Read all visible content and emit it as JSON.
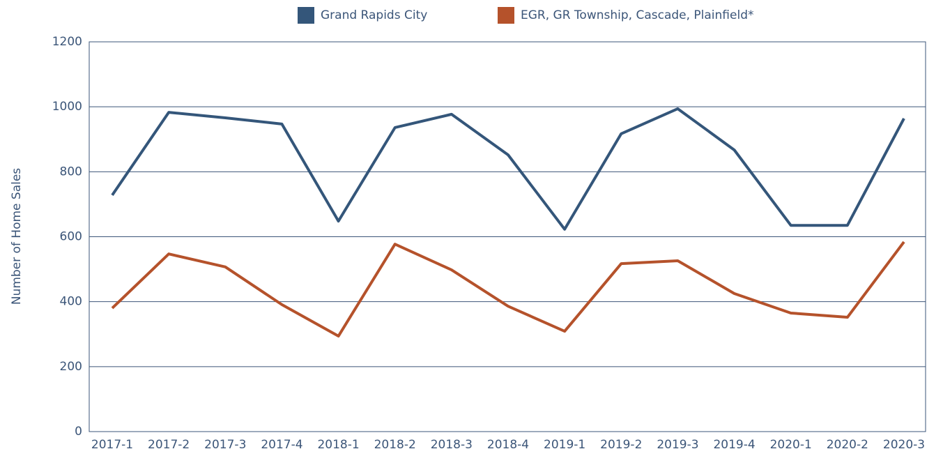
{
  "chart_data": {
    "type": "line",
    "categories": [
      "2017-1",
      "2017-2",
      "2017-3",
      "2017-4",
      "2018-1",
      "2018-2",
      "2018-3",
      "2018-4",
      "2019-1",
      "2019-2",
      "2019-3",
      "2019-4",
      "2020-1",
      "2020-2",
      "2020-3"
    ],
    "series": [
      {
        "name": "Grand Rapids City",
        "color": "#34567a",
        "values": [
          728,
          983,
          966,
          947,
          648,
          936,
          977,
          852,
          623,
          917,
          994,
          867,
          635,
          635,
          964
        ]
      },
      {
        "name": "EGR, GR Township, Cascade, Plainfield*",
        "color": "#b5522b",
        "values": [
          380,
          547,
          507,
          391,
          294,
          577,
          498,
          386,
          309,
          517,
          526,
          425,
          365,
          352,
          584
        ]
      }
    ],
    "y_label": "Number of Home Sales",
    "ylim": [
      0,
      1200
    ],
    "yticks": [
      0,
      200,
      400,
      600,
      800,
      1000,
      1200
    ],
    "grid": true,
    "legend": "top"
  }
}
